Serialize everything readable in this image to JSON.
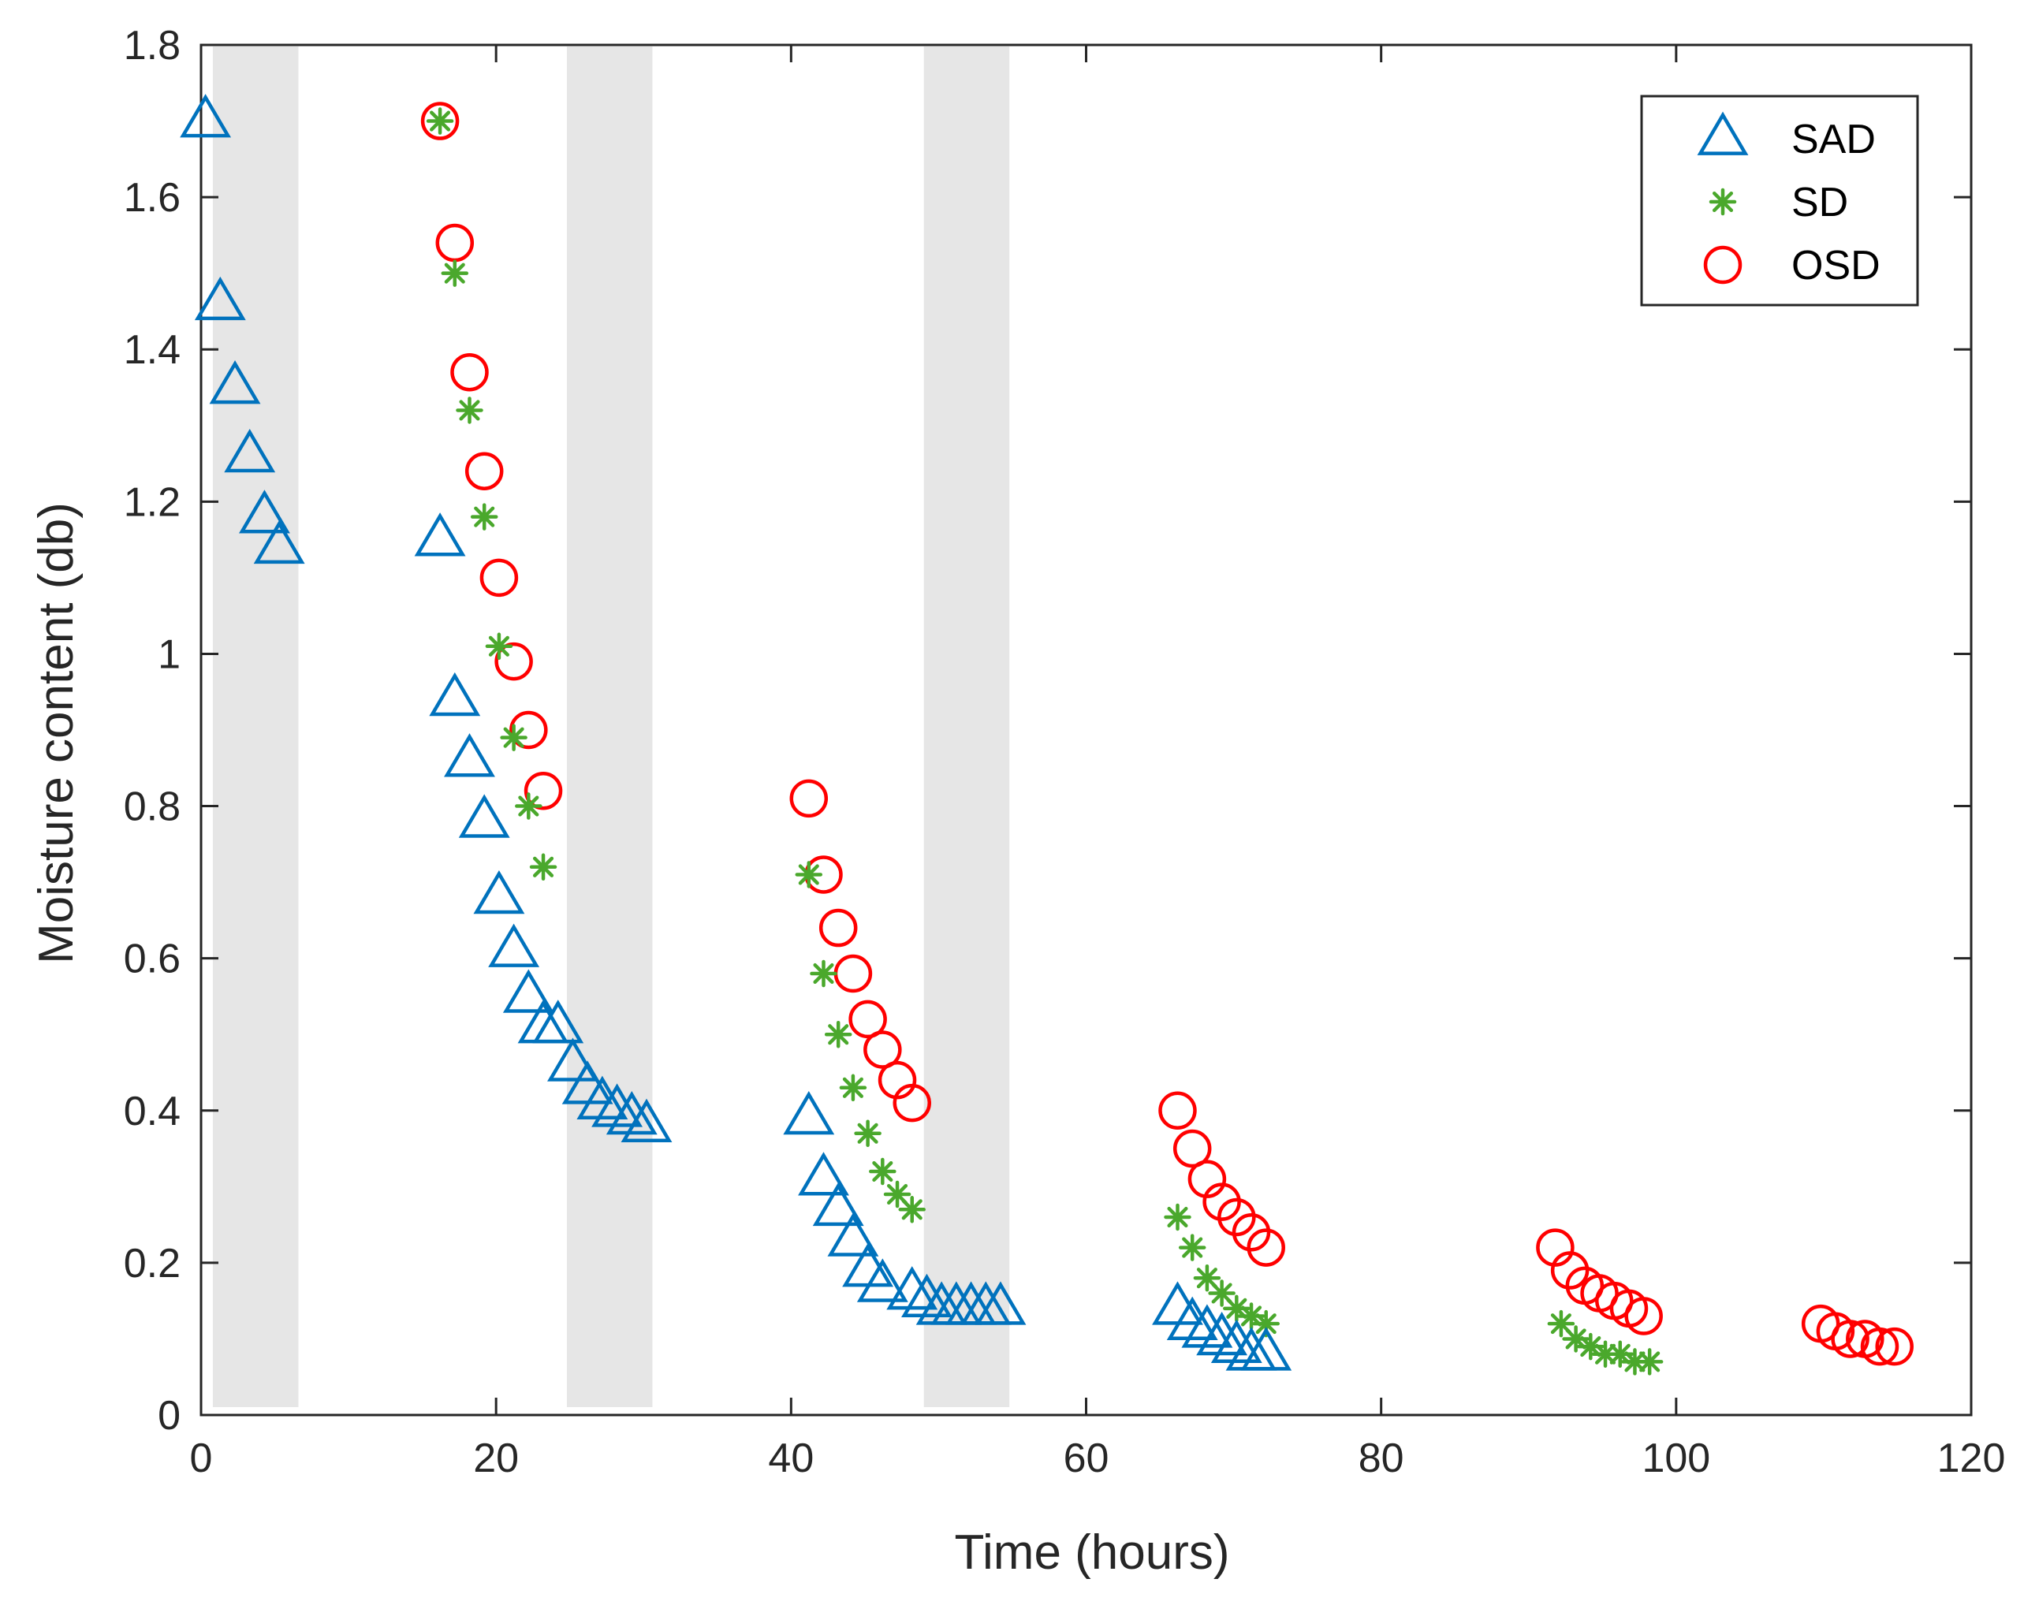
{
  "chart_data": {
    "type": "scatter",
    "title": "",
    "xlabel": "Time (hours)",
    "ylabel": "Moisture content (db)",
    "xlim": [
      0,
      120
    ],
    "ylim": [
      0,
      1.8
    ],
    "xticks": [
      0,
      20,
      40,
      60,
      80,
      100,
      120
    ],
    "yticks": [
      0,
      0.2,
      0.4,
      0.6,
      0.8,
      1,
      1.2,
      1.4,
      1.6,
      1.8
    ],
    "xtick_labels": [
      "0",
      "20",
      "40",
      "60",
      "80",
      "100",
      "120"
    ],
    "ytick_labels": [
      "0",
      "0.2",
      "0.4",
      "0.6",
      "0.8",
      "1",
      "1.2",
      "1.4",
      "1.6",
      "1.8"
    ],
    "grid": false,
    "legend_position": "top-right",
    "shaded_intervals": [
      [
        0.8,
        6.6
      ],
      [
        24.8,
        30.6
      ],
      [
        49,
        54.8
      ]
    ],
    "shade_color": "#e6e6e6",
    "series": [
      {
        "name": "SAD",
        "marker": "triangle",
        "color": "#0072bd",
        "x": [
          0.3,
          1.3,
          2.3,
          3.3,
          4.3,
          5.3,
          16.2,
          17.2,
          18.2,
          19.2,
          20.2,
          21.2,
          22.2,
          23.2,
          24.2,
          25.2,
          26.2,
          27.2,
          28.2,
          29.2,
          30.2,
          41.2,
          42.2,
          43.2,
          44.2,
          45.2,
          46.2,
          48.2,
          49.2,
          50.2,
          51.2,
          52.2,
          53.2,
          54.2,
          66.2,
          67.2,
          68.2,
          69.2,
          70.2,
          71.2,
          72.2
        ],
        "y": [
          1.7,
          1.46,
          1.35,
          1.26,
          1.18,
          1.14,
          1.15,
          0.94,
          0.86,
          0.78,
          0.68,
          0.61,
          0.55,
          0.51,
          0.51,
          0.46,
          0.43,
          0.41,
          0.4,
          0.39,
          0.38,
          0.39,
          0.31,
          0.27,
          0.23,
          0.19,
          0.17,
          0.16,
          0.15,
          0.14,
          0.14,
          0.14,
          0.14,
          0.14,
          0.14,
          0.12,
          0.11,
          0.1,
          0.09,
          0.08,
          0.08
        ]
      },
      {
        "name": "SD",
        "marker": "asterisk",
        "color": "#4aa82c",
        "x": [
          16.2,
          17.2,
          18.2,
          19.2,
          20.2,
          21.2,
          22.2,
          23.2,
          41.2,
          42.2,
          43.2,
          44.2,
          45.2,
          46.2,
          47.2,
          48.2,
          66.2,
          67.2,
          68.2,
          69.2,
          70.2,
          71.2,
          72.2,
          92.2,
          93.2,
          94.2,
          95.2,
          96.2,
          97.2,
          98.2
        ],
        "y": [
          1.7,
          1.5,
          1.32,
          1.18,
          1.01,
          0.89,
          0.8,
          0.72,
          0.71,
          0.58,
          0.5,
          0.43,
          0.37,
          0.32,
          0.29,
          0.27,
          0.26,
          0.22,
          0.18,
          0.16,
          0.14,
          0.13,
          0.12,
          0.12,
          0.1,
          0.09,
          0.08,
          0.08,
          0.07,
          0.07
        ]
      },
      {
        "name": "OSD",
        "marker": "circle",
        "color": "#ff0000",
        "x": [
          16.2,
          17.2,
          18.2,
          19.2,
          20.2,
          21.2,
          22.2,
          23.2,
          41.2,
          42.2,
          43.2,
          44.2,
          45.2,
          46.2,
          47.2,
          48.2,
          66.2,
          67.2,
          68.2,
          69.2,
          70.2,
          71.2,
          72.2,
          91.8,
          92.8,
          93.8,
          94.8,
          95.8,
          96.8,
          97.8,
          109.8,
          110.8,
          111.8,
          112.8,
          113.8,
          114.8
        ],
        "y": [
          1.7,
          1.54,
          1.37,
          1.24,
          1.1,
          0.99,
          0.9,
          0.82,
          0.81,
          0.71,
          0.64,
          0.58,
          0.52,
          0.48,
          0.44,
          0.41,
          0.4,
          0.35,
          0.31,
          0.28,
          0.26,
          0.24,
          0.22,
          0.22,
          0.19,
          0.17,
          0.16,
          0.15,
          0.14,
          0.13,
          0.12,
          0.11,
          0.1,
          0.1,
          0.09,
          0.09
        ]
      }
    ]
  }
}
